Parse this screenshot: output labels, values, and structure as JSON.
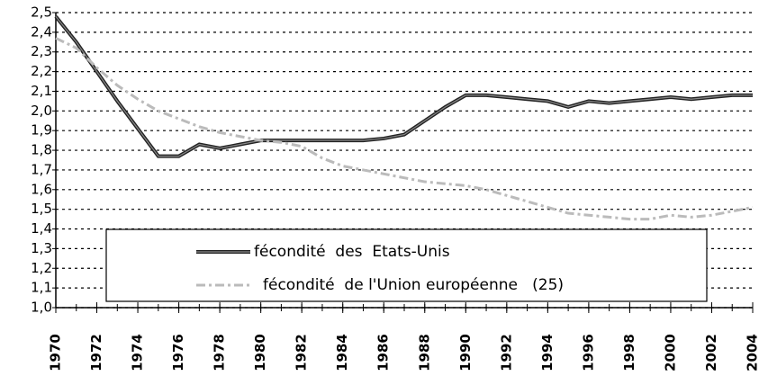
{
  "chart_data": {
    "type": "line",
    "x": [
      1970,
      1971,
      1972,
      1973,
      1974,
      1975,
      1976,
      1977,
      1978,
      1979,
      1980,
      1981,
      1982,
      1983,
      1984,
      1985,
      1986,
      1987,
      1988,
      1989,
      1990,
      1991,
      1992,
      1993,
      1994,
      1995,
      1996,
      1997,
      1998,
      1999,
      2000,
      2001,
      2002,
      2003,
      2004
    ],
    "series": [
      {
        "name": "fécondité  des  Etats-Unis",
        "color": "#222222",
        "values": [
          2.48,
          2.35,
          2.2,
          2.05,
          1.91,
          1.77,
          1.77,
          1.83,
          1.81,
          1.83,
          1.85,
          1.85,
          1.85,
          1.85,
          1.85,
          1.85,
          1.86,
          1.88,
          1.95,
          2.02,
          2.08,
          2.08,
          2.07,
          2.06,
          2.05,
          2.02,
          2.05,
          2.04,
          2.05,
          2.06,
          2.07,
          2.06,
          2.07,
          2.08,
          2.08
        ]
      },
      {
        "name": "fécondité  de l'Union européenne   (25)",
        "color": "#bbbbbb",
        "values": [
          2.37,
          2.32,
          2.22,
          2.13,
          2.06,
          2.0,
          1.96,
          1.92,
          1.89,
          1.87,
          1.85,
          1.84,
          1.82,
          1.76,
          1.72,
          1.7,
          1.68,
          1.66,
          1.64,
          1.63,
          1.62,
          1.6,
          1.57,
          1.54,
          1.51,
          1.48,
          1.47,
          1.46,
          1.45,
          1.45,
          1.47,
          1.46,
          1.47,
          1.49,
          1.51
        ]
      }
    ],
    "xlim": [
      1970,
      2004
    ],
    "xticks": [
      1970,
      1972,
      1974,
      1976,
      1978,
      1980,
      1982,
      1984,
      1986,
      1988,
      1990,
      1992,
      1994,
      1996,
      1998,
      2000,
      2002,
      2004
    ],
    "ylim": [
      1.0,
      2.5
    ],
    "yticks": [
      {
        "value": 1.0,
        "label": "1,0"
      },
      {
        "value": 1.1,
        "label": "1,1"
      },
      {
        "value": 1.2,
        "label": "1,2"
      },
      {
        "value": 1.3,
        "label": "1,3"
      },
      {
        "value": 1.4,
        "label": "1,4"
      },
      {
        "value": 1.5,
        "label": "1,5"
      },
      {
        "value": 1.6,
        "label": "1,6"
      },
      {
        "value": 1.7,
        "label": "1,7"
      },
      {
        "value": 1.8,
        "label": "1,8"
      },
      {
        "value": 1.9,
        "label": "1,9"
      },
      {
        "value": 2.0,
        "label": "2,0"
      },
      {
        "value": 2.1,
        "label": "2,1"
      },
      {
        "value": 2.2,
        "label": "2,2"
      },
      {
        "value": 2.3,
        "label": "2,3"
      },
      {
        "value": 2.4,
        "label": "2,4"
      },
      {
        "value": 2.5,
        "label": "2,5"
      }
    ],
    "grid": true,
    "legend": "lower center"
  }
}
